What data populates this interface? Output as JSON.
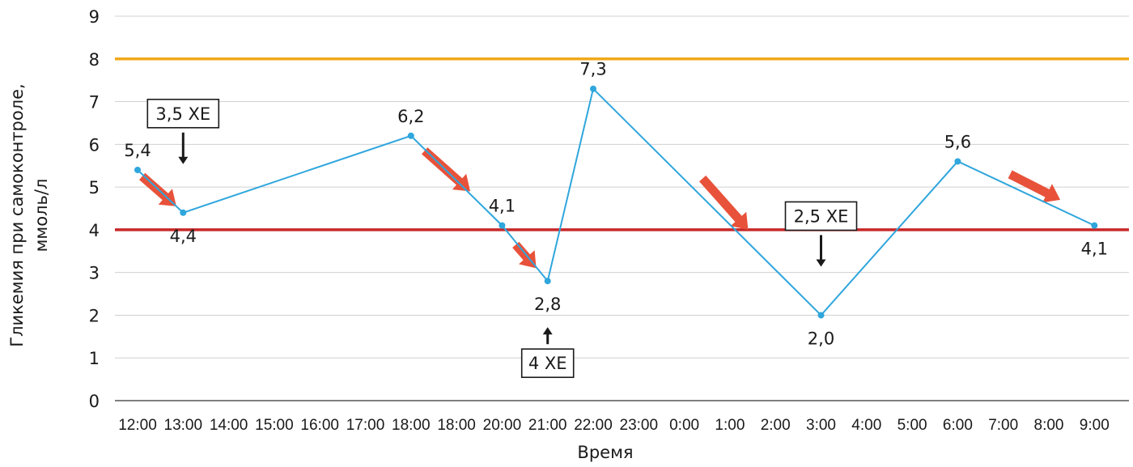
{
  "chart_data": {
    "type": "line",
    "title": "",
    "xlabel": "Время",
    "ylabel_lines": [
      "Гликемия при самоконтроле,",
      "ммоль/л"
    ],
    "ylim": [
      0,
      9
    ],
    "yticks": [
      "0",
      "1",
      "2",
      "3",
      "4",
      "5",
      "6",
      "7",
      "8",
      "9"
    ],
    "categories": [
      "12:00",
      "13:00",
      "14:00",
      "15:00",
      "16:00",
      "17:00",
      "18:00",
      "18:00",
      "20:00",
      "21:00",
      "22:00",
      "23:00",
      "0:00",
      "1:00",
      "2:00",
      "3:00",
      "4:00",
      "5:00",
      "6:00",
      "7:00",
      "8:00",
      "9:00"
    ],
    "grid": true,
    "series": [
      {
        "color": "#2fa6dc",
        "points": [
          {
            "index": 0,
            "value": 5.4,
            "label": "5,4"
          },
          {
            "index": 1,
            "value": 4.4,
            "label": "4,4"
          },
          {
            "index": 6,
            "value": 6.2,
            "label": "6,2"
          },
          {
            "index": 8,
            "value": 4.1,
            "label": "4,1"
          },
          {
            "index": 9,
            "value": 2.8,
            "label": "2,8"
          },
          {
            "index": 10,
            "value": 7.3,
            "label": "7,3"
          },
          {
            "index": 15,
            "value": 2.0,
            "label": "2,0"
          },
          {
            "index": 18,
            "value": 5.6,
            "label": "5,6"
          },
          {
            "index": 21,
            "value": 4.1,
            "label": "4,1"
          }
        ]
      }
    ],
    "reference_lines": [
      {
        "value": 8,
        "color": "#f0a81a"
      },
      {
        "value": 4,
        "color": "#c82828"
      }
    ],
    "annotations": [
      {
        "text": "3,5 ХЕ",
        "index": 1,
        "direction": "down"
      },
      {
        "text": "4 ХЕ",
        "index": 9,
        "direction": "up"
      },
      {
        "text": "2,5 ХЕ",
        "index": 15,
        "direction": "down"
      }
    ],
    "trend_arrows": [
      {
        "from_index": 0.1,
        "to_index": 0.85,
        "from_value": 5.25,
        "to_value": 4.55
      },
      {
        "from_index": 6.3,
        "to_index": 7.3,
        "from_value": 5.85,
        "to_value": 4.9
      },
      {
        "from_index": 8.3,
        "to_index": 8.75,
        "from_value": 3.65,
        "to_value": 3.1
      },
      {
        "from_index": 12.4,
        "to_index": 13.4,
        "from_value": 5.2,
        "to_value": 4.0
      },
      {
        "from_index": 19.15,
        "to_index": 20.25,
        "from_value": 5.3,
        "to_value": 4.7
      }
    ],
    "colors": {
      "trend_arrow": "#e8523a",
      "grid": "#d0d0d0",
      "axis": "#555555"
    }
  }
}
